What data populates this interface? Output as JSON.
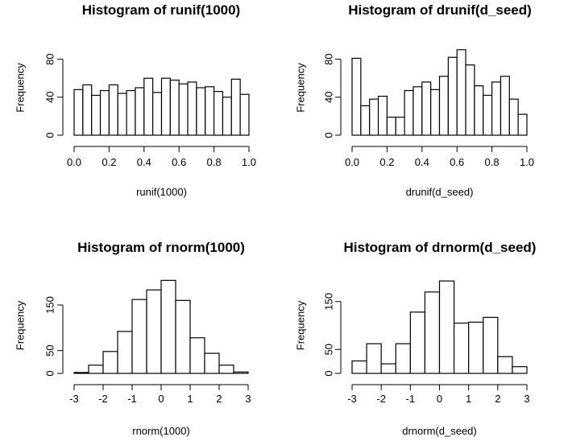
{
  "chart_data": [
    {
      "type": "bar",
      "title": "Histogram of runif(1000)",
      "xlabel": "runif(1000)",
      "ylabel": "Frequency",
      "xlim": [
        0,
        1
      ],
      "ylim": [
        0,
        100
      ],
      "xticks": [
        "0.0",
        "0.2",
        "0.4",
        "0.6",
        "0.8",
        "1.0"
      ],
      "yticks": [
        "0",
        "40",
        "80"
      ],
      "bin_edges": [
        0.0,
        0.05,
        0.1,
        0.15,
        0.2,
        0.25,
        0.3,
        0.35,
        0.4,
        0.45,
        0.5,
        0.55,
        0.6,
        0.65,
        0.7,
        0.75,
        0.8,
        0.85,
        0.9,
        0.95,
        1.0
      ],
      "values": [
        48,
        53,
        42,
        47,
        53,
        44,
        47,
        50,
        60,
        45,
        60,
        58,
        54,
        56,
        50,
        51,
        46,
        40,
        59,
        43
      ],
      "grid": false
    },
    {
      "type": "bar",
      "title": "Histogram of drunif(d_seed)",
      "xlabel": "drunif(d_seed)",
      "ylabel": "Frequency",
      "xlim": [
        0,
        1
      ],
      "ylim": [
        0,
        100
      ],
      "xticks": [
        "0.0",
        "0.2",
        "0.4",
        "0.6",
        "0.8",
        "1.0"
      ],
      "yticks": [
        "0",
        "40",
        "80"
      ],
      "bin_edges": [
        0.0,
        0.05,
        0.1,
        0.15,
        0.2,
        0.25,
        0.3,
        0.35,
        0.4,
        0.45,
        0.5,
        0.55,
        0.6,
        0.65,
        0.7,
        0.75,
        0.8,
        0.85,
        0.9,
        0.95,
        1.0
      ],
      "values": [
        81,
        31,
        38,
        41,
        19,
        19,
        47,
        51,
        56,
        48,
        62,
        82,
        90,
        74,
        52,
        42,
        56,
        62,
        38,
        22
      ],
      "grid": false
    },
    {
      "type": "bar",
      "title": "Histogram of rnorm(1000)",
      "xlabel": "rnorm(1000)",
      "ylabel": "Frequency",
      "xlim": [
        -3,
        3
      ],
      "ylim": [
        0,
        210
      ],
      "xticks": [
        "-3",
        "-2",
        "-1",
        "0",
        "1",
        "2",
        "3"
      ],
      "yticks": [
        "0",
        "50",
        "150"
      ],
      "bin_edges": [
        -3.0,
        -2.5,
        -2.0,
        -1.5,
        -1.0,
        -0.5,
        0.0,
        0.5,
        1.0,
        1.5,
        2.0,
        2.5,
        3.0
      ],
      "values": [
        2,
        18,
        48,
        92,
        162,
        183,
        204,
        160,
        78,
        44,
        18,
        3
      ],
      "grid": false
    },
    {
      "type": "bar",
      "title": "Histogram of drnorm(d_seed)",
      "xlabel": "drnorm(d_seed)",
      "ylabel": "Frequency",
      "xlim": [
        -3,
        3
      ],
      "ylim": [
        0,
        200
      ],
      "xticks": [
        "-3",
        "-2",
        "-1",
        "0",
        "1",
        "2",
        "3"
      ],
      "yticks": [
        "0",
        "50",
        "150"
      ],
      "bin_edges": [
        -3.0,
        -2.5,
        -2.0,
        -1.5,
        -1.0,
        -0.5,
        0.0,
        0.5,
        1.0,
        1.5,
        2.0,
        2.5,
        3.0
      ],
      "values": [
        26,
        62,
        20,
        62,
        128,
        170,
        193,
        105,
        107,
        117,
        35,
        14
      ],
      "grid": false
    }
  ]
}
